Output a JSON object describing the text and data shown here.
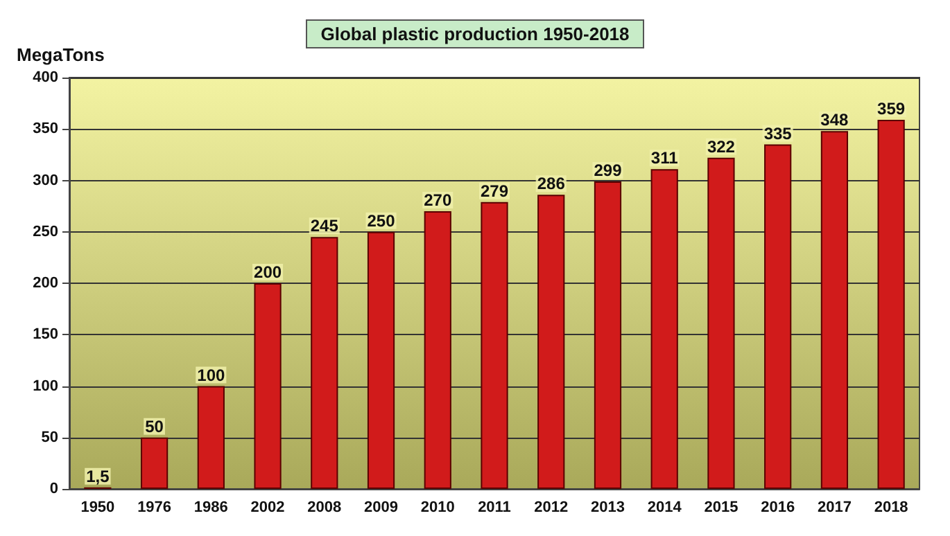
{
  "chart_data": {
    "type": "bar",
    "title": "Global plastic production 1950-2018",
    "ylabel": "MegaTons",
    "categories": [
      "1950",
      "1976",
      "1986",
      "2002",
      "2008",
      "2009",
      "2010",
      "2011",
      "2012",
      "2013",
      "2014",
      "2015",
      "2016",
      "2017",
      "2018"
    ],
    "values": [
      1.5,
      50,
      100,
      200,
      245,
      250,
      270,
      279,
      286,
      299,
      311,
      322,
      335,
      348,
      359
    ],
    "value_labels": [
      "1,5",
      "50",
      "100",
      "200",
      "245",
      "250",
      "270",
      "279",
      "286",
      "299",
      "311",
      "322",
      "335",
      "348",
      "359"
    ],
    "color": "#d11b1b",
    "ylim": [
      0,
      400
    ],
    "yticks": [
      0,
      50,
      100,
      150,
      200,
      250,
      300,
      350,
      400
    ],
    "grid": "y"
  }
}
